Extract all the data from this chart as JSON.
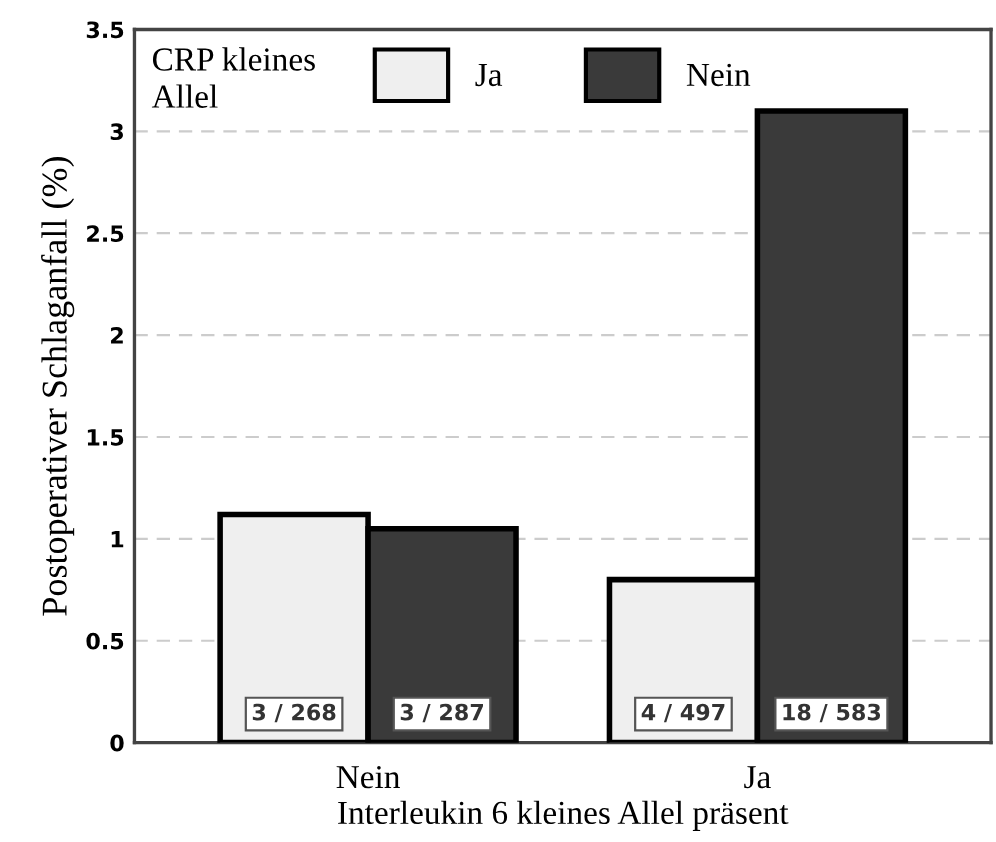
{
  "chart_data": {
    "type": "bar",
    "xlabel": "Interleukin 6 kleines Allel präsent",
    "ylabel": "Postoperativer Schlaganfall (%)",
    "legend_title": "CRP kleines Allel",
    "categories": [
      "Nein",
      "Ja"
    ],
    "series": [
      {
        "name": "Ja",
        "color": "#efefef",
        "values": [
          1.12,
          0.8
        ]
      },
      {
        "name": "Nein",
        "color": "#3a3a3a",
        "values": [
          1.05,
          3.1
        ]
      }
    ],
    "annotations": [
      "3 / 268",
      "4 / 497",
      "3 / 287",
      "18 / 583"
    ],
    "ylim": [
      0,
      3.5
    ],
    "yticks": [
      0,
      0.5,
      1,
      1.5,
      2,
      2.5,
      3,
      3.5
    ],
    "grid": "y",
    "legend": "top"
  }
}
